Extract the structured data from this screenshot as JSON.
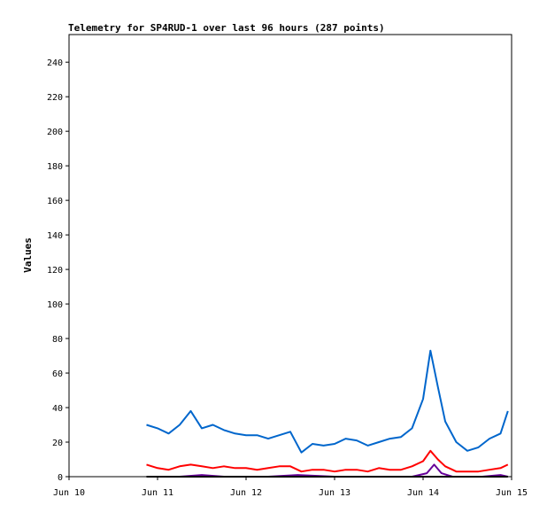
{
  "chart_data": {
    "type": "line",
    "title": "Telemetry for SP4RUD-1 over last 96 hours (287 points)",
    "xlabel": "",
    "ylabel": "Values",
    "x_ticks": [
      "Jun 10",
      "Jun 11",
      "Jun 12",
      "Jun 13",
      "Jun 14",
      "Jun 15"
    ],
    "y_ticks": [
      0,
      20,
      40,
      60,
      80,
      100,
      120,
      140,
      160,
      180,
      200,
      220,
      240
    ],
    "xlim": [
      "2023-06-10T00:00",
      "2023-06-15T00:00"
    ],
    "ylim": [
      0,
      256
    ],
    "grid": false,
    "legend": "none",
    "series": [
      {
        "color": "#0066cc",
        "x": [
          "2023-06-10T21:00",
          "2023-06-11T00:00",
          "2023-06-11T03:00",
          "2023-06-11T06:00",
          "2023-06-11T09:00",
          "2023-06-11T12:00",
          "2023-06-11T15:00",
          "2023-06-11T18:00",
          "2023-06-11T21:00",
          "2023-06-12T00:00",
          "2023-06-12T03:00",
          "2023-06-12T06:00",
          "2023-06-12T09:00",
          "2023-06-12T12:00",
          "2023-06-12T15:00",
          "2023-06-12T18:00",
          "2023-06-12T21:00",
          "2023-06-13T00:00",
          "2023-06-13T03:00",
          "2023-06-13T06:00",
          "2023-06-13T09:00",
          "2023-06-13T12:00",
          "2023-06-13T15:00",
          "2023-06-13T18:00",
          "2023-06-13T21:00",
          "2023-06-14T00:00",
          "2023-06-14T02:00",
          "2023-06-14T04:00",
          "2023-06-14T06:00",
          "2023-06-14T09:00",
          "2023-06-14T12:00",
          "2023-06-14T15:00",
          "2023-06-14T18:00",
          "2023-06-14T21:00",
          "2023-06-14T23:00"
        ],
        "y": [
          30,
          28,
          25,
          30,
          38,
          28,
          30,
          27,
          25,
          24,
          24,
          22,
          24,
          26,
          14,
          19,
          18,
          19,
          22,
          21,
          18,
          20,
          22,
          23,
          28,
          45,
          73,
          52,
          32,
          20,
          15,
          17,
          22,
          25,
          38
        ]
      },
      {
        "color": "#ff0000",
        "x": [
          "2023-06-10T21:00",
          "2023-06-11T00:00",
          "2023-06-11T03:00",
          "2023-06-11T06:00",
          "2023-06-11T09:00",
          "2023-06-11T12:00",
          "2023-06-11T15:00",
          "2023-06-11T18:00",
          "2023-06-11T21:00",
          "2023-06-12T00:00",
          "2023-06-12T03:00",
          "2023-06-12T06:00",
          "2023-06-12T09:00",
          "2023-06-12T12:00",
          "2023-06-12T15:00",
          "2023-06-12T18:00",
          "2023-06-12T21:00",
          "2023-06-13T00:00",
          "2023-06-13T03:00",
          "2023-06-13T06:00",
          "2023-06-13T09:00",
          "2023-06-13T12:00",
          "2023-06-13T15:00",
          "2023-06-13T18:00",
          "2023-06-13T21:00",
          "2023-06-14T00:00",
          "2023-06-14T02:00",
          "2023-06-14T04:00",
          "2023-06-14T06:00",
          "2023-06-14T09:00",
          "2023-06-14T12:00",
          "2023-06-14T15:00",
          "2023-06-14T18:00",
          "2023-06-14T21:00",
          "2023-06-14T23:00"
        ],
        "y": [
          7,
          5,
          4,
          6,
          7,
          6,
          5,
          6,
          5,
          5,
          4,
          5,
          6,
          6,
          3,
          4,
          4,
          3,
          4,
          4,
          3,
          5,
          4,
          4,
          6,
          9,
          15,
          10,
          6,
          3,
          3,
          3,
          4,
          5,
          7
        ]
      },
      {
        "color": "#660099",
        "x": [
          "2023-06-10T21:00",
          "2023-06-11T06:00",
          "2023-06-11T12:00",
          "2023-06-11T18:00",
          "2023-06-12T06:00",
          "2023-06-12T14:00",
          "2023-06-13T00:00",
          "2023-06-13T12:00",
          "2023-06-13T21:00",
          "2023-06-14T01:00",
          "2023-06-14T03:00",
          "2023-06-14T05:00",
          "2023-06-14T08:00",
          "2023-06-14T16:00",
          "2023-06-14T21:00",
          "2023-06-14T23:00"
        ],
        "y": [
          0,
          0,
          1,
          0,
          0,
          1,
          0,
          0,
          0,
          2,
          7,
          2,
          0,
          0,
          1,
          0
        ]
      },
      {
        "color": "#000000",
        "x": [
          "2023-06-10T21:00",
          "2023-06-14T23:00"
        ],
        "y": [
          0,
          0
        ]
      }
    ]
  }
}
